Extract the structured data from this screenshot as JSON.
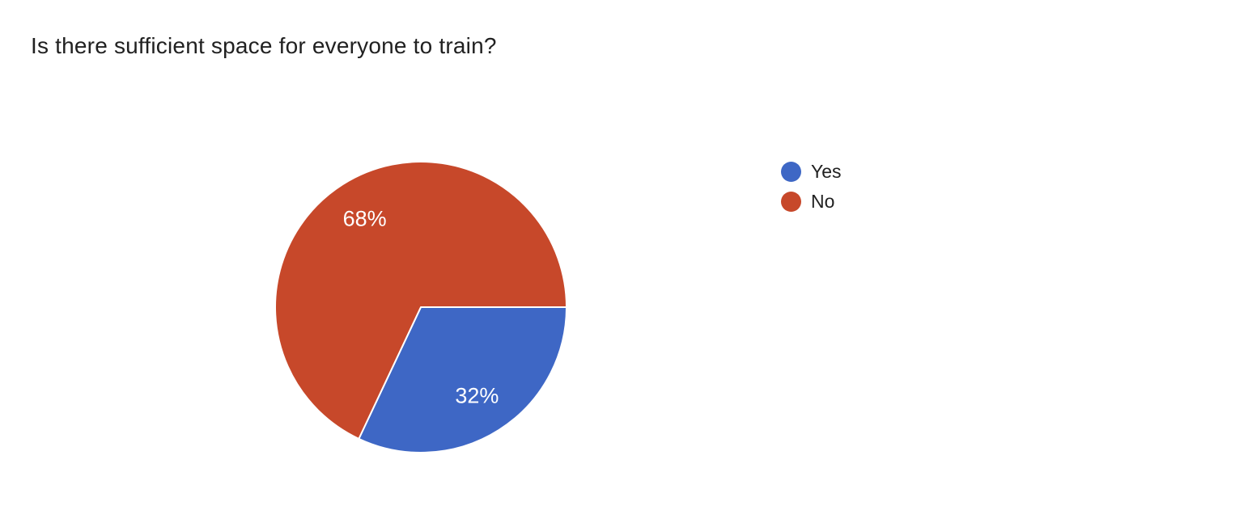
{
  "question": {
    "title": "Is there sufficient space for everyone to train?"
  },
  "chart_data": {
    "type": "pie",
    "title": "Is there sufficient space for everyone to train?",
    "categories": [
      "Yes",
      "No"
    ],
    "values": [
      32,
      68
    ],
    "unit": "percent",
    "slice_labels": [
      "32%",
      "68%"
    ],
    "colors": [
      "#3E67C5",
      "#C7482A"
    ],
    "label_color": "#FFFFFF",
    "start_angle_deg": 0,
    "direction": "clockwise",
    "legend_position": "right",
    "legend": [
      {
        "label": "Yes",
        "color": "#3E67C5"
      },
      {
        "label": "No",
        "color": "#C7482A"
      }
    ]
  },
  "style": {
    "background": "#FFFFFF",
    "title_color": "#212121",
    "legend_text_color": "#212121",
    "slice_stroke_color": "#FFFFFF"
  }
}
